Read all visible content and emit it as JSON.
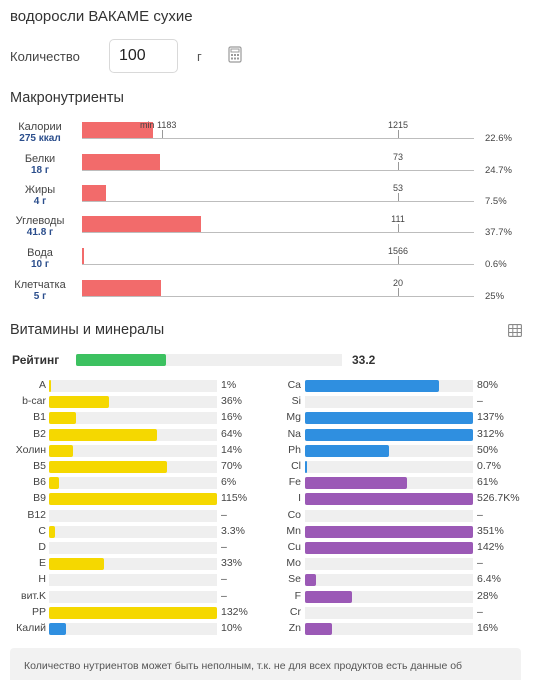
{
  "product": {
    "title": "водоросли ВАКАМЕ сухие"
  },
  "quantity": {
    "label": "Количество",
    "value": "100",
    "unit": "г"
  },
  "icons": {
    "calculator": "calculator-icon",
    "table": "table-icon"
  },
  "colors": {
    "macro": "#f26b6b",
    "rating": "#3cc160",
    "vitamin": "#f5d800",
    "mineral_blue": "#2f8fe0",
    "mineral_purple": "#9b59b6"
  },
  "macros": {
    "title": "Макронутриенты",
    "min_label": "min 1183",
    "items": [
      {
        "name": "Калории",
        "value": "275 ккал",
        "bar_fraction": 0.226,
        "tick_label": "1215",
        "percent": "22.6%"
      },
      {
        "name": "Белки",
        "value": "18 г",
        "bar_fraction": 0.247,
        "tick_label": "73",
        "percent": "24.7%"
      },
      {
        "name": "Жиры",
        "value": "4 г",
        "bar_fraction": 0.075,
        "tick_label": "53",
        "percent": "7.5%"
      },
      {
        "name": "Углеводы",
        "value": "41.8 г",
        "bar_fraction": 0.377,
        "tick_label": "111",
        "percent": "37.7%"
      },
      {
        "name": "Вода",
        "value": "10 г",
        "bar_fraction": 0.006,
        "tick_label": "1566",
        "percent": "0.6%"
      },
      {
        "name": "Клетчатка",
        "value": "5 г",
        "bar_fraction": 0.25,
        "tick_label": "20",
        "percent": "25%"
      }
    ]
  },
  "vitamins_minerals": {
    "title": "Витамины и минералы",
    "rating": {
      "label": "Рейтинг",
      "value": "33.2",
      "fraction": 0.332
    },
    "left": [
      {
        "name": "A",
        "value": "1%",
        "fraction": 0.01,
        "color": "#f5d800"
      },
      {
        "name": "b-car",
        "value": "36%",
        "fraction": 0.36,
        "color": "#f5d800"
      },
      {
        "name": "B1",
        "value": "16%",
        "fraction": 0.16,
        "color": "#f5d800"
      },
      {
        "name": "B2",
        "value": "64%",
        "fraction": 0.64,
        "color": "#f5d800"
      },
      {
        "name": "Холин",
        "value": "14%",
        "fraction": 0.14,
        "color": "#f5d800"
      },
      {
        "name": "B5",
        "value": "70%",
        "fraction": 0.7,
        "color": "#f5d800"
      },
      {
        "name": "B6",
        "value": "6%",
        "fraction": 0.06,
        "color": "#f5d800"
      },
      {
        "name": "B9",
        "value": "115%",
        "fraction": 1.0,
        "color": "#f5d800"
      },
      {
        "name": "B12",
        "value": "–",
        "fraction": 0,
        "color": "#f5d800"
      },
      {
        "name": "C",
        "value": "3.3%",
        "fraction": 0.033,
        "color": "#f5d800"
      },
      {
        "name": "D",
        "value": "–",
        "fraction": 0,
        "color": "#f5d800"
      },
      {
        "name": "E",
        "value": "33%",
        "fraction": 0.33,
        "color": "#f5d800"
      },
      {
        "name": "H",
        "value": "–",
        "fraction": 0,
        "color": "#f5d800"
      },
      {
        "name": "вит.K",
        "value": "–",
        "fraction": 0,
        "color": "#f5d800"
      },
      {
        "name": "PP",
        "value": "132%",
        "fraction": 1.0,
        "color": "#f5d800"
      },
      {
        "name": "Калий",
        "value": "10%",
        "fraction": 0.1,
        "color": "#2f8fe0"
      }
    ],
    "right": [
      {
        "name": "Ca",
        "value": "80%",
        "fraction": 0.8,
        "color": "#2f8fe0"
      },
      {
        "name": "Si",
        "value": "–",
        "fraction": 0,
        "color": "#2f8fe0"
      },
      {
        "name": "Mg",
        "value": "137%",
        "fraction": 1.0,
        "color": "#2f8fe0"
      },
      {
        "name": "Na",
        "value": "312%",
        "fraction": 1.0,
        "color": "#2f8fe0"
      },
      {
        "name": "Ph",
        "value": "50%",
        "fraction": 0.5,
        "color": "#2f8fe0"
      },
      {
        "name": "Cl",
        "value": "0.7%",
        "fraction": 0.007,
        "color": "#2f8fe0"
      },
      {
        "name": "Fe",
        "value": "61%",
        "fraction": 0.61,
        "color": "#9b59b6"
      },
      {
        "name": "I",
        "value": "526.7K%",
        "fraction": 1.0,
        "color": "#9b59b6"
      },
      {
        "name": "Co",
        "value": "–",
        "fraction": 0,
        "color": "#9b59b6"
      },
      {
        "name": "Mn",
        "value": "351%",
        "fraction": 1.0,
        "color": "#9b59b6"
      },
      {
        "name": "Cu",
        "value": "142%",
        "fraction": 1.0,
        "color": "#9b59b6"
      },
      {
        "name": "Mo",
        "value": "–",
        "fraction": 0,
        "color": "#9b59b6"
      },
      {
        "name": "Se",
        "value": "6.4%",
        "fraction": 0.064,
        "color": "#9b59b6"
      },
      {
        "name": "F",
        "value": "28%",
        "fraction": 0.28,
        "color": "#9b59b6"
      },
      {
        "name": "Cr",
        "value": "–",
        "fraction": 0,
        "color": "#9b59b6"
      },
      {
        "name": "Zn",
        "value": "16%",
        "fraction": 0.16,
        "color": "#9b59b6"
      }
    ]
  },
  "note": {
    "text": "Количество нутриентов может быть неполным, т.к. не для всех продуктов есть данные об"
  }
}
